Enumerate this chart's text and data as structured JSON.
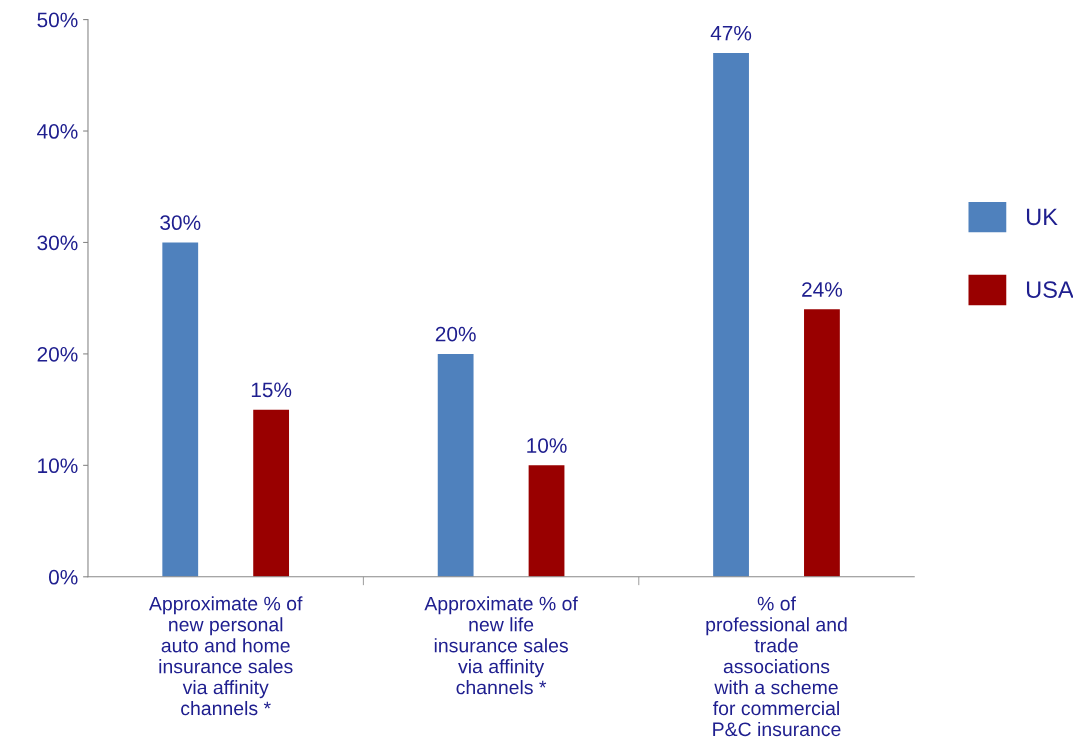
{
  "chart_data": {
    "type": "bar",
    "categories": [
      "Approximate % of new personal auto and home insurance sales via affinity channels *",
      "Approximate % of new life insurance sales via affinity channels *",
      "% of professional and trade associations with a scheme for commercial P&C insurance"
    ],
    "series": [
      {
        "name": "UK",
        "color": "#4f81bd",
        "values": [
          30,
          20,
          47
        ],
        "value_labels": [
          "30%",
          "20%",
          "47%"
        ]
      },
      {
        "name": "USA",
        "color": "#990000",
        "values": [
          15,
          10,
          24
        ],
        "value_labels": [
          "15%",
          "10%",
          "24%"
        ]
      }
    ],
    "ylim": [
      0,
      50
    ],
    "yticks": [
      {
        "value": 0,
        "label": "0%"
      },
      {
        "value": 10,
        "label": "10%"
      },
      {
        "value": 20,
        "label": "20%"
      },
      {
        "value": 30,
        "label": "30%"
      },
      {
        "value": 40,
        "label": "40%"
      },
      {
        "value": 50,
        "label": "50%"
      }
    ],
    "grid": false,
    "legend": "right"
  }
}
